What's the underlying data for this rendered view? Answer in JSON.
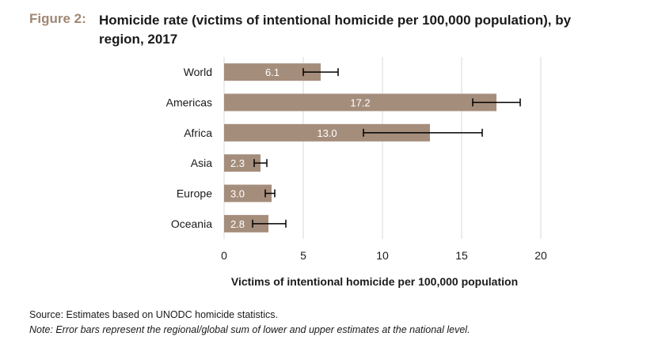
{
  "figure": {
    "label": "Figure 2:",
    "title": "Homicide rate (victims of intentional homicide per 100,000 population), by region, 2017"
  },
  "chart_data": {
    "type": "bar",
    "orientation": "horizontal",
    "title": "Homicide rate (victims of intentional homicide per 100,000 population), by region, 2017",
    "xlabel": "Victims of intentional homicide per 100,000 population",
    "ylabel": "",
    "categories": [
      "World",
      "Americas",
      "Africa",
      "Asia",
      "Europe",
      "Oceania"
    ],
    "values": [
      6.1,
      17.2,
      13.0,
      2.3,
      3.0,
      2.8
    ],
    "value_labels": [
      "6.1",
      "17.2",
      "13.0",
      "2.3",
      "3.0",
      "2.8"
    ],
    "error_low": [
      5.0,
      15.7,
      8.8,
      1.9,
      2.6,
      1.8
    ],
    "error_high": [
      7.2,
      18.7,
      16.3,
      2.7,
      3.2,
      3.9
    ],
    "xlim": [
      0,
      20
    ],
    "xticks": [
      0,
      5,
      10,
      15,
      20
    ],
    "grid": "vertical",
    "legend": "none",
    "colors": {
      "bar": "#a58d7c",
      "grid": "#d9d9d9",
      "error_bar": "#000000",
      "label": "#ffffff"
    }
  },
  "footer": {
    "source": "Source: Estimates based on UNODC homicide statistics.",
    "note": "Note: Error bars represent the regional/global sum of lower and upper estimates at the national level."
  }
}
